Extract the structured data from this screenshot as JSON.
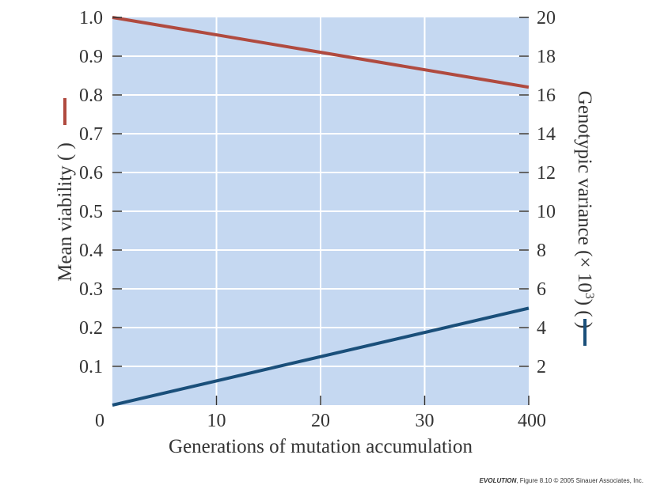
{
  "chart_data": {
    "type": "line",
    "x": [
      0,
      40
    ],
    "xlabel": "Generations of mutation accumulation",
    "xlim": [
      0,
      40
    ],
    "xticks": [
      0,
      10,
      20,
      30,
      40
    ],
    "y_left": {
      "label_prefix": "Mean viability (",
      "label_suffix": ")",
      "lim": [
        0,
        1.0
      ],
      "ticks": [
        0.1,
        0.2,
        0.3,
        0.4,
        0.5,
        0.6,
        0.7,
        0.8,
        0.9,
        1.0
      ],
      "tick_labels": [
        "0.1",
        "0.2",
        "0.3",
        "0.4",
        "0.5",
        "0.6",
        "0.7",
        "0.8",
        "0.9",
        "1.0"
      ]
    },
    "y_right": {
      "label_prefix": "Genotypic variance (× 10",
      "label_sup": "3",
      "label_suffix": ") (",
      "label_end": ")",
      "lim": [
        0,
        20
      ],
      "ticks": [
        2,
        4,
        6,
        8,
        10,
        12,
        14,
        16,
        18,
        20
      ],
      "tick_labels": [
        "2",
        "4",
        "6",
        "8",
        "10",
        "12",
        "14",
        "16",
        "18",
        "20"
      ]
    },
    "x_zero_label": "0",
    "right_zero_label": "0",
    "series": [
      {
        "axis": "left",
        "color": "#b04a3f",
        "x": [
          0,
          40
        ],
        "values": [
          1.0,
          0.82
        ]
      },
      {
        "axis": "right",
        "color": "#1a4f7a",
        "x": [
          0,
          40
        ],
        "values": [
          0,
          5.0
        ]
      }
    ],
    "grid": true,
    "plot_bg": "#c5d8f1",
    "grid_color": "#ffffff"
  },
  "credit": {
    "title": "EVOLUTION",
    "text": ", Figure 8.10  © 2005 Sinauer Associates, Inc."
  }
}
